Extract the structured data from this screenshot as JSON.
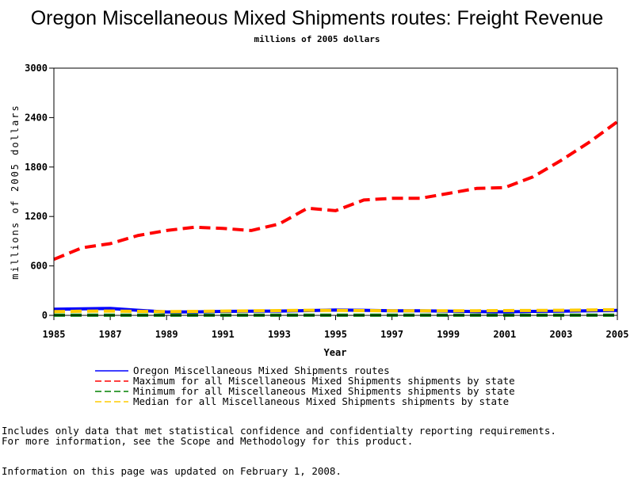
{
  "chart_data": {
    "type": "line",
    "title": "Oregon Miscellaneous Mixed Shipments routes: Freight Revenue",
    "subtitle": "millions of 2005 dollars",
    "xlabel": "Year",
    "ylabel": "millions of 2005 dollars",
    "xlim": [
      1985,
      2005
    ],
    "ylim": [
      0,
      3000
    ],
    "x_ticks": [
      1985,
      1987,
      1989,
      1991,
      1993,
      1995,
      1997,
      1999,
      2001,
      2003,
      2005
    ],
    "y_ticks": [
      0,
      600,
      1200,
      1800,
      2400,
      3000
    ],
    "x": [
      1985,
      1986,
      1987,
      1988,
      1989,
      1990,
      1991,
      1992,
      1993,
      1994,
      1995,
      1996,
      1997,
      1998,
      1999,
      2000,
      2001,
      2002,
      2003,
      2004,
      2005
    ],
    "grid": false,
    "legend_position": "bottom",
    "series": [
      {
        "name": "Oregon Miscellaneous Mixed Shipments routes",
        "color": "#0000ff",
        "style": "solid",
        "values": [
          75,
          80,
          85,
          62,
          40,
          42,
          48,
          50,
          52,
          58,
          65,
          62,
          55,
          55,
          50,
          45,
          42,
          48,
          50,
          55,
          60
        ]
      },
      {
        "name": "Maximum for all Miscellaneous Mixed Shipments shipments by state",
        "color": "#ff0000",
        "style": "dashed",
        "values": [
          680,
          820,
          870,
          970,
          1030,
          1070,
          1055,
          1030,
          1110,
          1300,
          1270,
          1400,
          1420,
          1420,
          1480,
          1540,
          1550,
          1680,
          1880,
          2100,
          2350
        ]
      },
      {
        "name": "Minimum for all Miscellaneous Mixed Shipments shipments by state",
        "color": "#008000",
        "style": "dashed",
        "values": [
          2,
          2,
          2,
          2,
          2,
          2,
          2,
          2,
          2,
          2,
          2,
          2,
          2,
          2,
          2,
          2,
          2,
          2,
          2,
          2,
          2
        ]
      },
      {
        "name": "Median for all Miscellaneous Mixed Shipments shipments by state",
        "color": "#ffcc00",
        "style": "dashed",
        "values": [
          45,
          50,
          52,
          48,
          45,
          48,
          52,
          55,
          58,
          62,
          60,
          58,
          56,
          55,
          55,
          56,
          58,
          60,
          62,
          65,
          68
        ]
      }
    ]
  },
  "notes": {
    "line1": "Includes only data that met statistical confidence and confidentialty reporting requirements.",
    "line2": "For more information, see the Scope and Methodology for this product.",
    "updated": "Information on this page was updated on February 1, 2008."
  }
}
